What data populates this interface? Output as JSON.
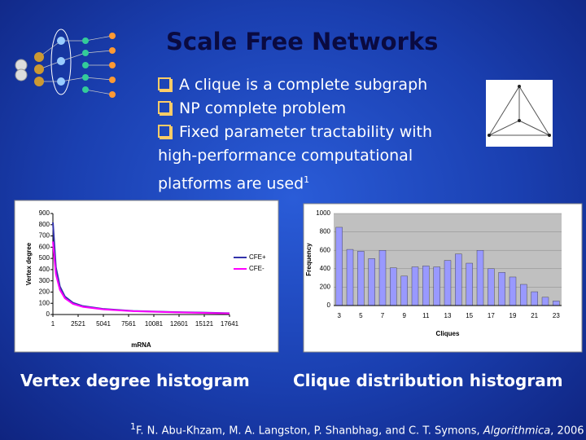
{
  "title": "Scale Free Networks",
  "bullets": [
    "A clique is a complete subgraph",
    "NP complete problem",
    "Fixed parameter tractability with high-performance computational platforms are used"
  ],
  "bullet_ref": "1",
  "captions": [
    "Vertex degree histogram",
    "Clique distribution histogram"
  ],
  "footnote": {
    "mark": "1",
    "text": "F. N. Abu-Khzam, M. A. Langston, P. Shanbhag, and C. T. Symons, ",
    "journal": "Algorithmica",
    "year": ", 2006"
  },
  "chart_data": [
    {
      "type": "line",
      "x_label": "mRNA",
      "y_label": "Vertex degree",
      "x": [
        1,
        300,
        700,
        1200,
        2000,
        3000,
        5000,
        8000,
        12000,
        17641
      ],
      "series": [
        {
          "name": "CFE+",
          "color": "#3333aa",
          "values": [
            820,
            420,
            250,
            160,
            105,
            75,
            50,
            32,
            22,
            12
          ]
        },
        {
          "name": "CFE-",
          "color": "#ff00ff",
          "values": [
            650,
            360,
            220,
            145,
            95,
            68,
            46,
            30,
            20,
            10
          ]
        }
      ],
      "xlim": [
        1,
        17641
      ],
      "xticks": [
        1,
        2521,
        5041,
        7561,
        10081,
        12601,
        15121,
        17641
      ],
      "ylim": [
        0,
        900
      ],
      "yticks": [
        0,
        100,
        200,
        300,
        400,
        500,
        600,
        700,
        800,
        900
      ],
      "grid": false,
      "legend": "right"
    },
    {
      "type": "bar",
      "x_label": "Cliques",
      "y_label": "Frequency",
      "color": "#9999ff",
      "categories": [
        3,
        null,
        5,
        null,
        7,
        null,
        9,
        null,
        11,
        null,
        13,
        null,
        15,
        null,
        17,
        null,
        19,
        null,
        21,
        null,
        23
      ],
      "values": [
        850,
        610,
        590,
        510,
        600,
        410,
        320,
        420,
        430,
        420,
        490,
        560,
        460,
        600,
        400,
        360,
        310,
        230,
        150,
        90,
        50
      ],
      "ylim": [
        0,
        1000
      ],
      "yticks": [
        0,
        200,
        400,
        600,
        800,
        1000
      ],
      "grid": true
    }
  ]
}
